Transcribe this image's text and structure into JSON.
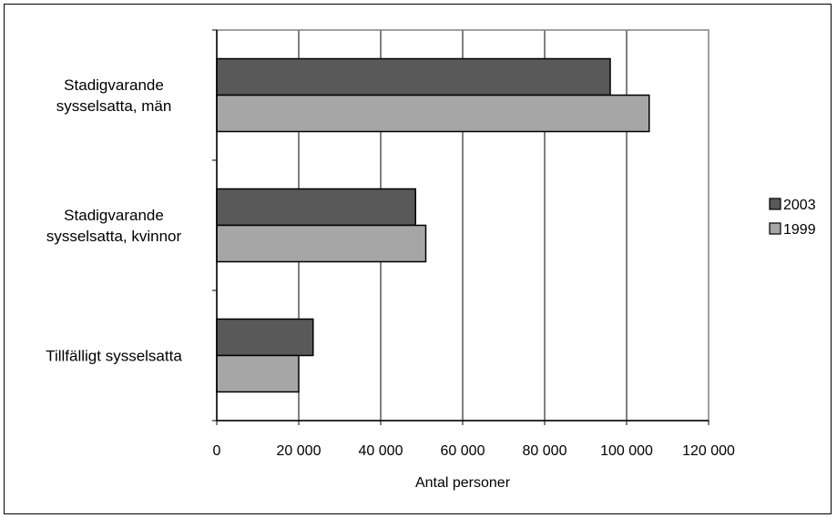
{
  "chart_data": {
    "type": "bar",
    "orientation": "horizontal",
    "categories": [
      [
        "Stadigvarande",
        "sysselsatta, män"
      ],
      [
        "Stadigvarande",
        "sysselsatta, kvinnor"
      ],
      [
        "Tillfälligt sysselsatta"
      ]
    ],
    "series": [
      {
        "name": "2003",
        "values": [
          96000,
          48500,
          23500
        ],
        "color": "#595959"
      },
      {
        "name": "1999",
        "values": [
          105500,
          51000,
          20000
        ],
        "color": "#a6a6a6"
      }
    ],
    "xlabel": "Antal personer",
    "xlim": [
      0,
      120000
    ],
    "xticks": [
      0,
      20000,
      40000,
      60000,
      80000,
      100000,
      120000
    ],
    "xtick_labels": [
      "0",
      "20 000",
      "40 000",
      "60 000",
      "80 000",
      "100 000",
      "120 000"
    ],
    "grid": "vertical",
    "legend": "right",
    "plot_background": "#ffffff",
    "plot_border_color": "#808080"
  }
}
